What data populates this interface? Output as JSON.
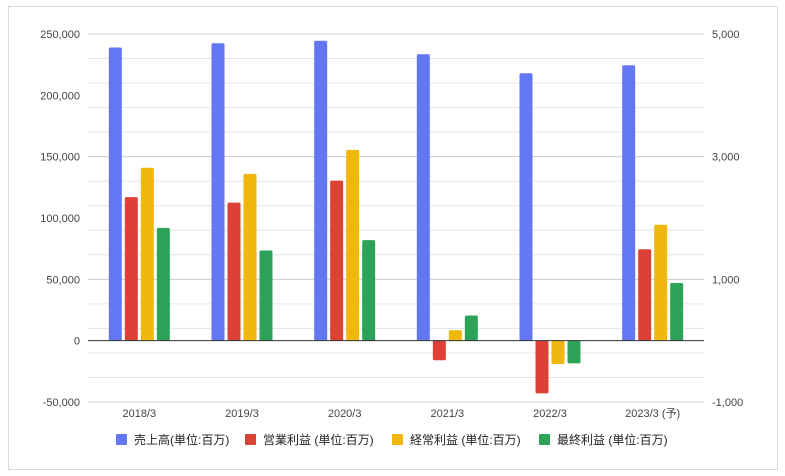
{
  "chart_data": {
    "type": "bar",
    "title": "",
    "categories": [
      "2018/3",
      "2019/3",
      "2020/3",
      "2021/3",
      "2022/3",
      "2023/3 (予)"
    ],
    "series": [
      {
        "name": "売上高(単位:百万)",
        "axis": "left",
        "color": "#6477f2",
        "values": [
          239000,
          242500,
          244500,
          233500,
          218000,
          224500
        ]
      },
      {
        "name": "営業利益 (単位:百万)",
        "axis": "right",
        "color": "#dc4136",
        "values": [
          2340,
          2250,
          2610,
          -320,
          -860,
          1490
        ]
      },
      {
        "name": "経常利益 (単位:百万)",
        "axis": "right",
        "color": "#f0b70c",
        "values": [
          2820,
          2720,
          3110,
          170,
          -380,
          1890
        ]
      },
      {
        "name": "最終利益 (単位:百万)",
        "axis": "right",
        "color": "#2ca358",
        "values": [
          1840,
          1470,
          1640,
          410,
          -370,
          940
        ]
      }
    ],
    "y_left": {
      "min": -50000,
      "max": 250000,
      "ticks": [
        "250,000",
        "200,000",
        "150,000",
        "100,000",
        "50,000",
        "0",
        "-50,000"
      ]
    },
    "y_right": {
      "min": -1000,
      "max": 5000,
      "ticks": [
        "5,000",
        "3,000",
        "1,000",
        "-1,000"
      ]
    },
    "grid": true,
    "legend_position": "bottom"
  }
}
